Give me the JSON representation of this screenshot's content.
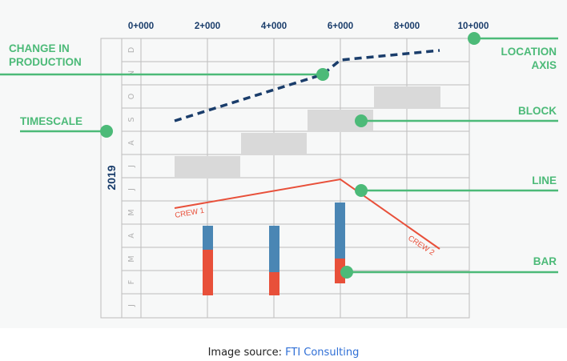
{
  "location_axis": {
    "labels": [
      "0+000",
      "2+000",
      "4+000",
      "6+000",
      "8+000",
      "10+000"
    ]
  },
  "timescale": {
    "year": "2019",
    "months": [
      "D",
      "N",
      "O",
      "S",
      "A",
      "J",
      "J",
      "M",
      "A",
      "M",
      "F",
      "J"
    ]
  },
  "callouts": {
    "change_in_production": "CHANGE IN\nPRODUCTION",
    "location_axis": "LOCATION\nAXIS",
    "timescale": "TIMESCALE",
    "block": "BLOCK",
    "line": "LINE",
    "bar": "BAR"
  },
  "crews": {
    "crew1": "CREW 1",
    "crew2": "CREW 2"
  },
  "caption": {
    "prefix": "Image source: ",
    "source": "FTI Consulting"
  },
  "colors": {
    "accent_green": "#4cba78",
    "axis_navy": "#1a3d6b",
    "crew_red": "#e8503a",
    "bar_blue": "#4a86b4",
    "block_gray": "#d9d9d9",
    "grid": "#bdbdbd"
  }
}
